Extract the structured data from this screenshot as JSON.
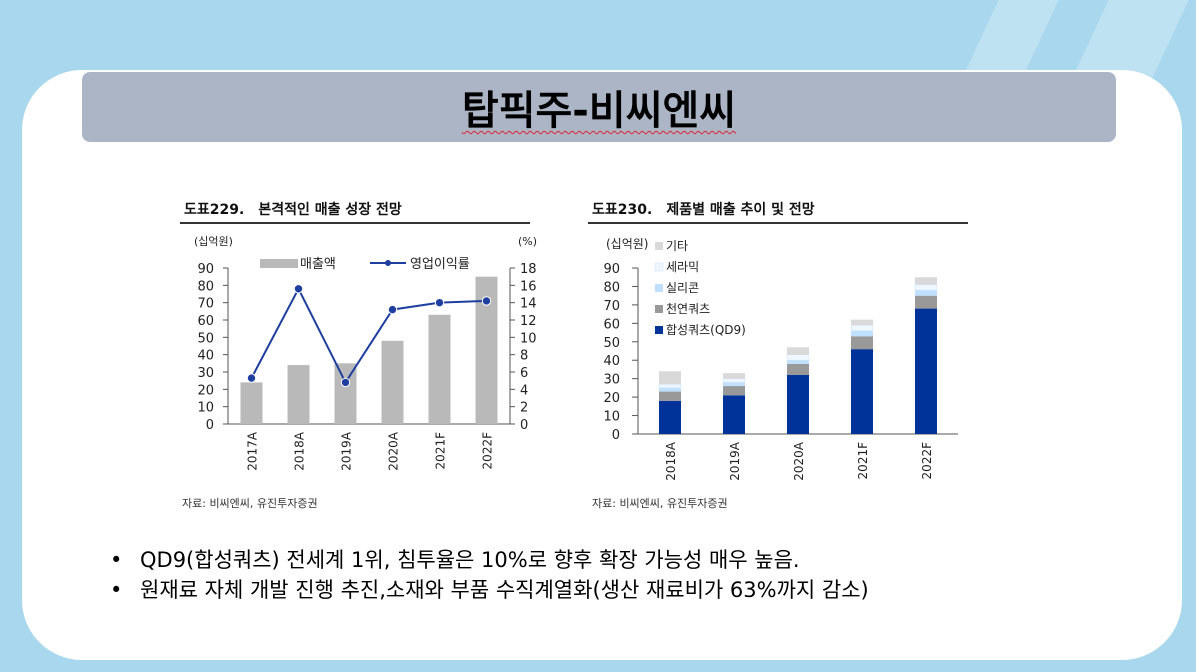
{
  "slide": {
    "title": "탑픽주-비씨엔씨",
    "bullets": [
      "QD9(합성쿼츠) 전세계 1위, 침투율은 10%로 향후 확장 가능성 매우 높음.",
      "원재료 자체 개발 진행 추진,소재와 부품 수직계열화(생산 재료비가 63%까지 감소)"
    ]
  },
  "figures": [
    {
      "num": "도표229.",
      "title": "본격적인 매출 성장 전망",
      "source": "자료: 비씨엔씨, 유진투자증권"
    },
    {
      "num": "도표230.",
      "title": "제품별 매출 추이 및 전망",
      "source": "자료: 비씨엔씨, 유진투자증권"
    }
  ],
  "colors": {
    "bar_gray": "#b9b9b9",
    "line_blue": "#1f3fa0",
    "quartz_syn": "#00339a",
    "quartz_nat": "#999999",
    "silicon": "#bfe0ff",
    "ceramic": "#eef6ff",
    "etc": "#d9d9d9"
  },
  "chart_data": [
    {
      "type": "bar",
      "categories": [
        "2017A",
        "2018A",
        "2019A",
        "2020A",
        "2021F",
        "2022F"
      ],
      "series": [
        {
          "name": "매출액",
          "type": "bar",
          "axis": "left",
          "values": [
            24,
            34,
            35,
            48,
            63,
            85
          ]
        },
        {
          "name": "영업이익률",
          "type": "line",
          "axis": "right",
          "values": [
            5.3,
            15.6,
            4.8,
            13.2,
            14.0,
            14.2
          ]
        }
      ],
      "ylabel_left": "(십억원)",
      "ylabel_right": "(%)",
      "ylim_left": [
        0,
        90
      ],
      "yticks_left": [
        "0",
        "10",
        "20",
        "30",
        "40",
        "50",
        "60",
        "70",
        "80",
        "90"
      ],
      "ylim_right": [
        0,
        18
      ],
      "yticks_right": [
        "0",
        "2",
        "4",
        "6",
        "8",
        "10",
        "12",
        "14",
        "16",
        "18"
      ],
      "legend": "top"
    },
    {
      "type": "bar",
      "stacked": true,
      "categories": [
        "2018A",
        "2019A",
        "2020A",
        "2021F",
        "2022F"
      ],
      "series": [
        {
          "name": "합성쿼츠(QD9)",
          "values": [
            18,
            21,
            32,
            46,
            68
          ]
        },
        {
          "name": "천연쿼츠",
          "values": [
            5,
            5,
            6,
            7,
            7
          ]
        },
        {
          "name": "실리콘",
          "values": [
            2,
            2,
            2,
            3,
            3
          ]
        },
        {
          "name": "세라믹",
          "values": [
            2,
            2,
            3,
            3,
            3
          ]
        },
        {
          "name": "기타",
          "values": [
            7,
            3,
            4,
            3,
            4
          ]
        }
      ],
      "ylabel": "(십억원)",
      "ylim": [
        0,
        90
      ],
      "yticks": [
        "0",
        "10",
        "20",
        "30",
        "40",
        "50",
        "60",
        "70",
        "80",
        "90"
      ],
      "legend": "top-left"
    }
  ]
}
